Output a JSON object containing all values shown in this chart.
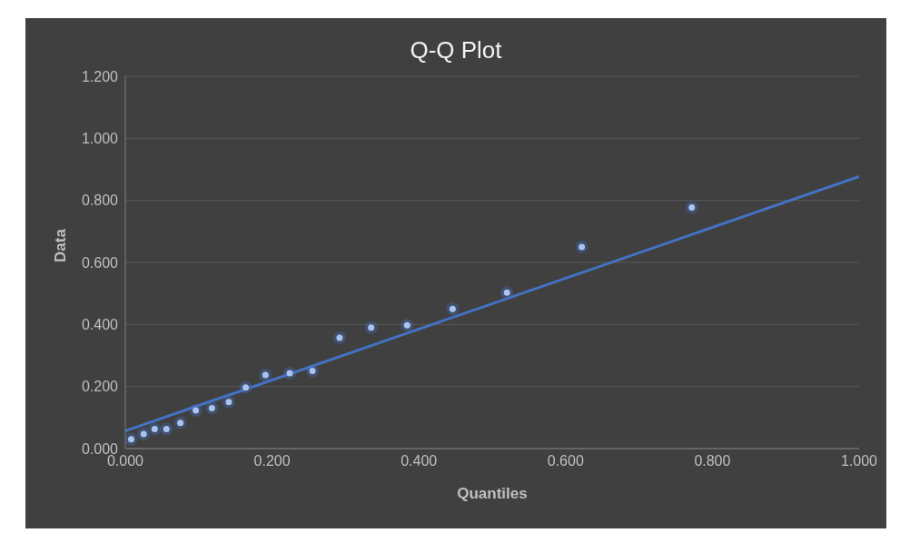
{
  "chart_data": {
    "type": "scatter",
    "title": "Q-Q Plot",
    "xlabel": "Quantiles",
    "ylabel": "Data",
    "xlim": [
      0,
      1
    ],
    "xticks": [
      {
        "value": 0,
        "label": "0.000"
      },
      {
        "value": 0.2,
        "label": "0.200"
      },
      {
        "value": 0.4,
        "label": "0.400"
      },
      {
        "value": 0.6,
        "label": "0.600"
      },
      {
        "value": 0.8,
        "label": "0.800"
      },
      {
        "value": 1,
        "label": "1.000"
      }
    ],
    "ylim": [
      0,
      1.2
    ],
    "yticks": [
      {
        "value": 0,
        "label": "0.000"
      },
      {
        "value": 0.2,
        "label": "0.200"
      },
      {
        "value": 0.4,
        "label": "0.400"
      },
      {
        "value": 0.6,
        "label": "0.600"
      },
      {
        "value": 0.8,
        "label": "0.800"
      },
      {
        "value": 1,
        "label": "1.000"
      },
      {
        "value": 1.2,
        "label": "1.200"
      }
    ],
    "grid": "y",
    "legend": false,
    "marker": "circle",
    "series": [
      {
        "type": "scatter",
        "color": "#a9c4f0",
        "x": [
          0.008,
          0.025,
          0.04,
          0.056,
          0.075,
          0.096,
          0.118,
          0.141,
          0.164,
          0.191,
          0.224,
          0.255,
          0.292,
          0.335,
          0.384,
          0.446,
          0.52,
          0.622,
          0.772
        ],
        "values": [
          0.03,
          0.047,
          0.063,
          0.063,
          0.083,
          0.123,
          0.13,
          0.15,
          0.197,
          0.237,
          0.243,
          0.25,
          0.357,
          0.39,
          0.397,
          0.45,
          0.503,
          0.65,
          0.777
        ]
      },
      {
        "type": "line",
        "color": "#4472c4",
        "x": [
          0,
          1
        ],
        "values": [
          0.057,
          0.877
        ],
        "line_style": "solid",
        "marker": "none"
      }
    ]
  }
}
